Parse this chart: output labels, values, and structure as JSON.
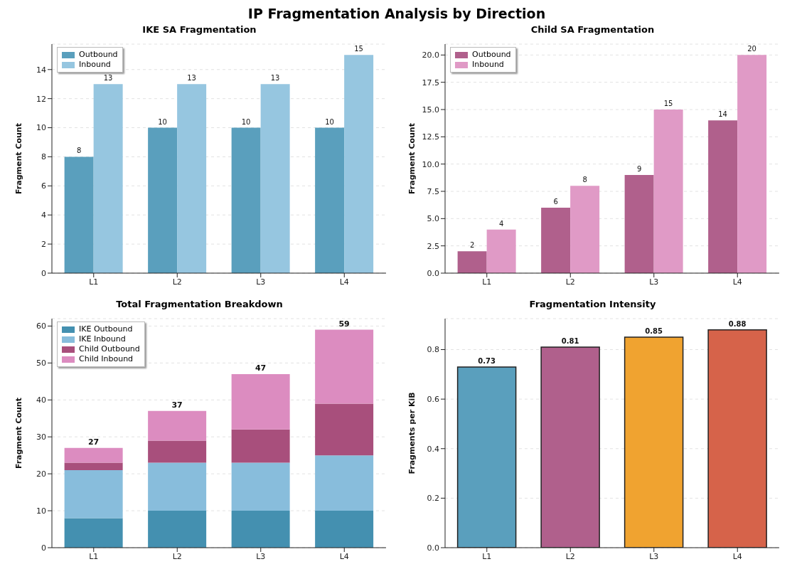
{
  "chart_data": [
    {
      "type": "bar",
      "title": "IKE SA Fragmentation",
      "annotations": [
        "IP Fragmentation Analysis by Direction"
      ],
      "ylabel": "Fragment Count",
      "categories": [
        "L1",
        "L2",
        "L3",
        "L4"
      ],
      "series": [
        {
          "name": "Outbound",
          "color": "#5a9fbd",
          "values": [
            8,
            10,
            10,
            10
          ]
        },
        {
          "name": "Inbound",
          "color": "#96c6e0",
          "values": [
            13,
            13,
            13,
            15
          ]
        }
      ],
      "ylim": [
        0,
        15.75
      ],
      "yticks": [
        0,
        2,
        4,
        6,
        8,
        10,
        12,
        14
      ],
      "grid": "y",
      "legend": "top left",
      "data_labels": true
    },
    {
      "type": "bar",
      "title": "Child SA Fragmentation",
      "ylabel": "Fragment Count",
      "categories": [
        "L1",
        "L2",
        "L3",
        "L4"
      ],
      "series": [
        {
          "name": "Outbound",
          "color": "#b0608c",
          "values": [
            2,
            6,
            9,
            14
          ]
        },
        {
          "name": "Inbound",
          "color": "#e09ac6",
          "values": [
            4,
            8,
            15,
            20
          ]
        }
      ],
      "ylim": [
        0,
        21
      ],
      "yticks": [
        {
          "value": 0,
          "label": "0.0"
        },
        {
          "value": 2.5,
          "label": "2.5"
        },
        {
          "value": 5,
          "label": "5.0"
        },
        {
          "value": 7.5,
          "label": "7.5"
        },
        {
          "value": 10,
          "label": "10.0"
        },
        {
          "value": 12.5,
          "label": "12.5"
        },
        {
          "value": 15,
          "label": "15.0"
        },
        {
          "value": 17.5,
          "label": "17.5"
        },
        {
          "value": 20,
          "label": "20.0"
        }
      ],
      "grid": "y",
      "legend": "top left",
      "data_labels": true
    },
    {
      "type": "bar",
      "title": "Total Fragmentation Breakdown",
      "ylabel": "Fragment Count",
      "categories": [
        "L1",
        "L2",
        "L3",
        "L4"
      ],
      "stacked": true,
      "series": [
        {
          "name": "IKE Outbound",
          "color": "#4490b0",
          "values": [
            8,
            10,
            10,
            10
          ]
        },
        {
          "name": "IKE Inbound",
          "color": "#88bddc",
          "values": [
            13,
            13,
            13,
            15
          ]
        },
        {
          "name": "Child Outbound",
          "color": "#a84f7c",
          "values": [
            2,
            6,
            9,
            14
          ]
        },
        {
          "name": "Child Inbound",
          "color": "#dc8cc0",
          "values": [
            4,
            8,
            15,
            20
          ]
        }
      ],
      "totals": [
        "27",
        "37",
        "47",
        "59"
      ],
      "ylim": [
        0,
        62
      ],
      "yticks": [
        0,
        10,
        20,
        30,
        40,
        50,
        60
      ],
      "grid": "y",
      "legend": "top left"
    },
    {
      "type": "bar",
      "title": "Fragmentation Intensity",
      "ylabel": "Fragments per KiB",
      "categories": [
        "L1",
        "L2",
        "L3",
        "L4"
      ],
      "values": [
        0.73,
        0.81,
        0.85,
        0.88
      ],
      "colors": [
        "#5a9fbd",
        "#b0608c",
        "#f0a330",
        "#d6634a"
      ],
      "ylim": [
        0,
        0.925
      ],
      "yticks": [
        {
          "value": 0,
          "label": "0.0"
        },
        {
          "value": 0.2,
          "label": "0.2"
        },
        {
          "value": 0.4,
          "label": "0.4"
        },
        {
          "value": 0.6,
          "label": "0.6"
        },
        {
          "value": 0.8,
          "label": "0.8"
        }
      ],
      "grid": "y",
      "data_labels": true
    }
  ]
}
